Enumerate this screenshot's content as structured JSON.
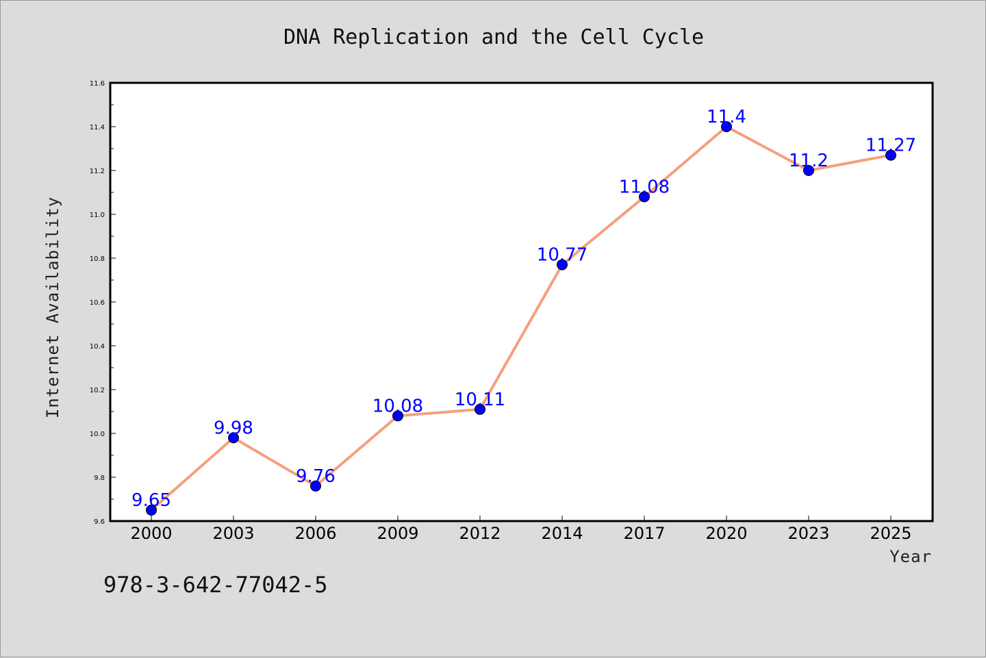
{
  "chart_data": {
    "type": "line",
    "title": "DNA Replication and the Cell Cycle",
    "xlabel": "Year",
    "ylabel": "Internet Availability",
    "categories": [
      "2000",
      "2003",
      "2006",
      "2009",
      "2012",
      "2014",
      "2017",
      "2020",
      "2023",
      "2025"
    ],
    "series": [
      {
        "values": [
          9.65,
          9.98,
          9.76,
          10.08,
          10.11,
          10.77,
          11.08,
          11.4,
          11.2,
          11.27
        ],
        "data_labels": [
          "9.65",
          "9.98",
          "9.76",
          "10.08",
          "10.11",
          "10.77",
          "11.08",
          "11.4",
          "11.2",
          "11.27"
        ]
      }
    ],
    "yticks": [
      "9.6",
      "9.8",
      "10.0",
      "10.2",
      "10.4",
      "10.6",
      "10.8",
      "11.0",
      "11.2",
      "11.4",
      "11.6"
    ],
    "ylim": [
      9.6,
      11.6
    ],
    "grid": false,
    "legend": "none",
    "line_color": "#f4a07e",
    "marker_color": "#0000ff",
    "label_color": "#0000ff"
  },
  "footnote": "978-3-642-77042-5"
}
